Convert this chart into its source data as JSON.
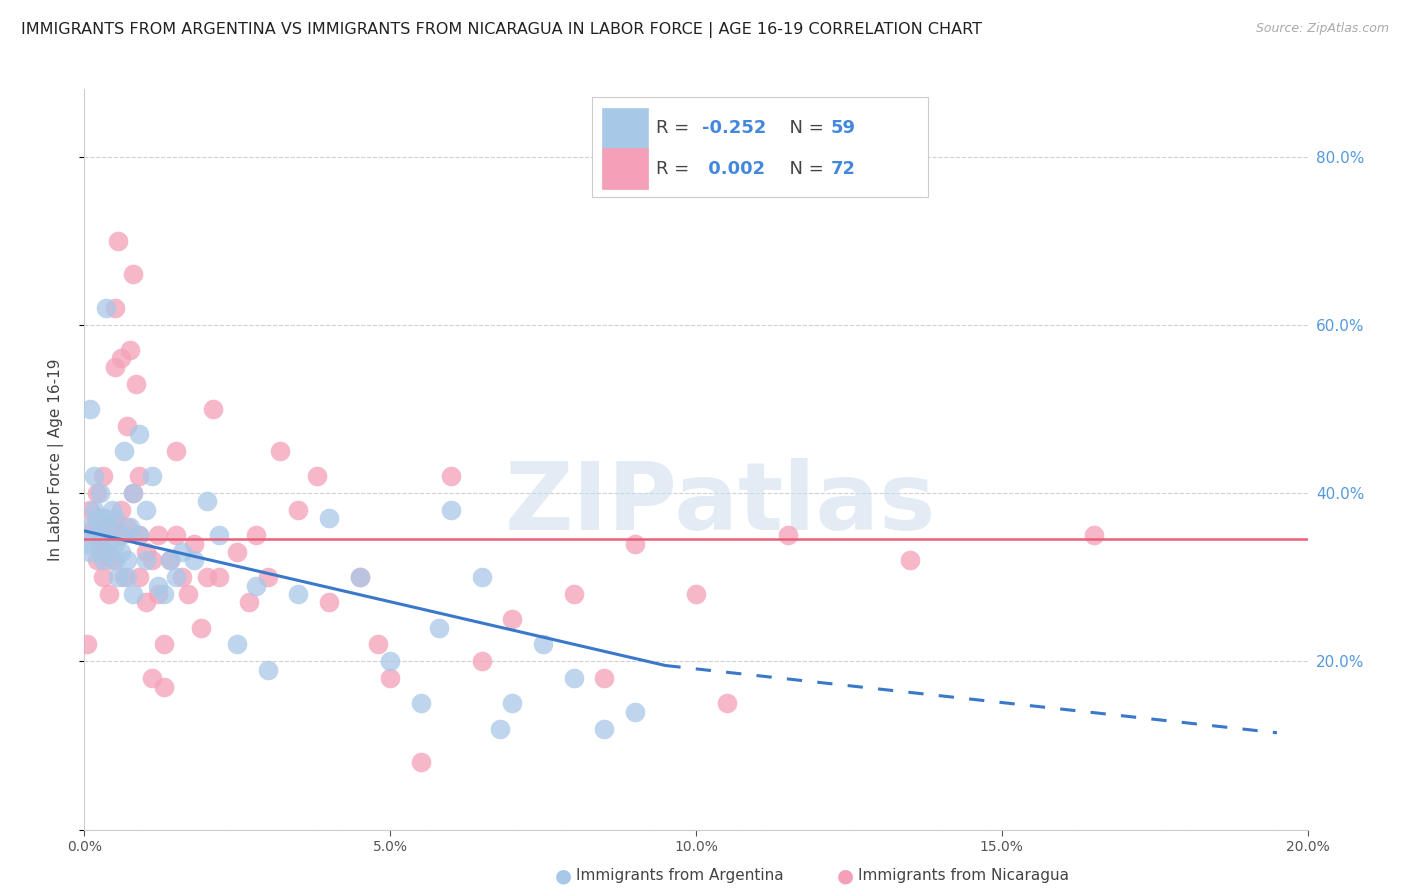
{
  "title": "IMMIGRANTS FROM ARGENTINA VS IMMIGRANTS FROM NICARAGUA IN LABOR FORCE | AGE 16-19 CORRELATION CHART",
  "source": "Source: ZipAtlas.com",
  "ylabel": "In Labor Force | Age 16-19",
  "xlim": [
    0.0,
    0.2
  ],
  "ylim": [
    0.0,
    0.88
  ],
  "yticks_right": [
    0.2,
    0.4,
    0.6,
    0.8
  ],
  "xticks": [
    0.0,
    0.05,
    0.1,
    0.15,
    0.2
  ],
  "legend_bottom_labels": [
    "Immigrants from Argentina",
    "Immigrants from Nicaragua"
  ],
  "r_argentina": -0.252,
  "n_argentina": 59,
  "r_nicaragua": 0.002,
  "n_nicaragua": 72,
  "color_argentina": "#a8c8e8",
  "color_nicaragua": "#f4a0b8",
  "color_argentina_line": "#3a78c9",
  "color_nicaragua_line": "#e8607a",
  "argentina_x": [
    0.0005,
    0.001,
    0.001,
    0.001,
    0.0015,
    0.0015,
    0.002,
    0.002,
    0.0025,
    0.0025,
    0.003,
    0.003,
    0.003,
    0.0035,
    0.004,
    0.004,
    0.0045,
    0.005,
    0.005,
    0.005,
    0.0055,
    0.006,
    0.006,
    0.0065,
    0.007,
    0.007,
    0.0075,
    0.008,
    0.008,
    0.009,
    0.009,
    0.01,
    0.01,
    0.011,
    0.012,
    0.013,
    0.014,
    0.015,
    0.016,
    0.018,
    0.02,
    0.022,
    0.025,
    0.028,
    0.03,
    0.035,
    0.04,
    0.045,
    0.05,
    0.055,
    0.058,
    0.06,
    0.065,
    0.068,
    0.07,
    0.075,
    0.08,
    0.085,
    0.09
  ],
  "argentina_y": [
    0.34,
    0.5,
    0.36,
    0.33,
    0.38,
    0.42,
    0.35,
    0.37,
    0.33,
    0.4,
    0.35,
    0.37,
    0.32,
    0.62,
    0.34,
    0.36,
    0.38,
    0.32,
    0.34,
    0.37,
    0.3,
    0.33,
    0.35,
    0.45,
    0.3,
    0.32,
    0.36,
    0.28,
    0.4,
    0.35,
    0.47,
    0.32,
    0.38,
    0.42,
    0.29,
    0.28,
    0.32,
    0.3,
    0.33,
    0.32,
    0.39,
    0.35,
    0.22,
    0.29,
    0.19,
    0.28,
    0.37,
    0.3,
    0.2,
    0.15,
    0.24,
    0.38,
    0.3,
    0.12,
    0.15,
    0.22,
    0.18,
    0.12,
    0.14
  ],
  "nicaragua_x": [
    0.0005,
    0.001,
    0.001,
    0.0015,
    0.002,
    0.002,
    0.0025,
    0.003,
    0.003,
    0.003,
    0.0035,
    0.004,
    0.004,
    0.0045,
    0.005,
    0.005,
    0.005,
    0.0055,
    0.006,
    0.006,
    0.006,
    0.0065,
    0.007,
    0.007,
    0.0075,
    0.008,
    0.008,
    0.0085,
    0.009,
    0.009,
    0.009,
    0.01,
    0.01,
    0.011,
    0.011,
    0.012,
    0.012,
    0.013,
    0.013,
    0.014,
    0.015,
    0.015,
    0.016,
    0.017,
    0.018,
    0.019,
    0.02,
    0.021,
    0.022,
    0.025,
    0.027,
    0.028,
    0.03,
    0.032,
    0.035,
    0.038,
    0.04,
    0.045,
    0.048,
    0.05,
    0.055,
    0.06,
    0.065,
    0.07,
    0.08,
    0.085,
    0.09,
    0.1,
    0.105,
    0.115,
    0.135,
    0.165
  ],
  "nicaragua_y": [
    0.22,
    0.35,
    0.38,
    0.36,
    0.32,
    0.4,
    0.34,
    0.37,
    0.42,
    0.3,
    0.33,
    0.36,
    0.28,
    0.32,
    0.36,
    0.55,
    0.62,
    0.7,
    0.35,
    0.38,
    0.56,
    0.3,
    0.48,
    0.36,
    0.57,
    0.66,
    0.4,
    0.53,
    0.35,
    0.42,
    0.3,
    0.33,
    0.27,
    0.32,
    0.18,
    0.28,
    0.35,
    0.17,
    0.22,
    0.32,
    0.45,
    0.35,
    0.3,
    0.28,
    0.34,
    0.24,
    0.3,
    0.5,
    0.3,
    0.33,
    0.27,
    0.35,
    0.3,
    0.45,
    0.38,
    0.42,
    0.27,
    0.3,
    0.22,
    0.18,
    0.08,
    0.42,
    0.2,
    0.25,
    0.28,
    0.18,
    0.34,
    0.28,
    0.15,
    0.35,
    0.32,
    0.35
  ],
  "trend_arg_x0": 0.0,
  "trend_arg_y0": 0.355,
  "trend_arg_x_solid_end": 0.095,
  "trend_arg_y_solid_end": 0.195,
  "trend_arg_x_dash_end": 0.195,
  "trend_arg_y_dash_end": 0.115,
  "trend_nic_y": 0.345,
  "background_color": "#ffffff",
  "grid_color": "#d0d0d0",
  "title_fontsize": 11.5,
  "axis_label_fontsize": 11,
  "tick_fontsize": 10,
  "dot_size": 200,
  "watermark_text": "ZIPatlas",
  "watermark_color": "#ccdded",
  "watermark_alpha": 0.55
}
